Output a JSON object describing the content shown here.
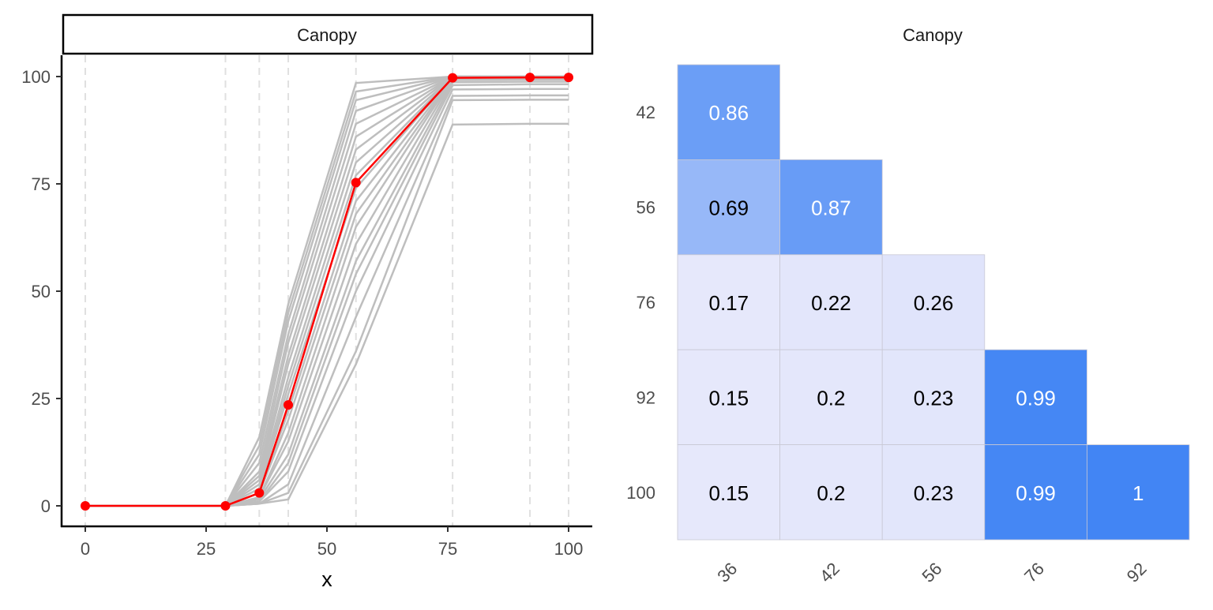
{
  "chart_data": [
    {
      "type": "line",
      "panel_title": "Canopy",
      "xlabel": "x",
      "ylabel": "",
      "xlim": [
        0,
        100
      ],
      "ylim": [
        0,
        100
      ],
      "x_ticks": [
        0,
        25,
        50,
        75,
        100
      ],
      "y_ticks": [
        0,
        25,
        50,
        75,
        100
      ],
      "vertical_reference_lines_x": [
        0,
        29,
        36,
        42,
        56,
        76,
        92,
        100
      ],
      "grid": false,
      "highlight_color": "#ff0000",
      "background_color": "#bebebe",
      "highlight_series": {
        "x": [
          0,
          29,
          36,
          42,
          56,
          76,
          92,
          100
        ],
        "y": [
          0,
          0,
          3,
          23.5,
          75.3,
          99.7,
          99.8,
          99.8
        ]
      },
      "background_series": [
        {
          "x": [
            0,
            29,
            36,
            42,
            56,
            76,
            92,
            100
          ],
          "y": [
            0,
            0,
            0.5,
            1.5,
            33,
            88.8,
            89,
            89
          ]
        },
        {
          "x": [
            0,
            29,
            36,
            42,
            56,
            76,
            92,
            100
          ],
          "y": [
            0,
            0,
            0.5,
            3,
            36,
            94.5,
            94.6,
            94.6
          ]
        },
        {
          "x": [
            0,
            29,
            36,
            42,
            56,
            76,
            92,
            100
          ],
          "y": [
            0,
            0,
            0.5,
            5,
            44,
            95.5,
            95.6,
            95.6
          ]
        },
        {
          "x": [
            0,
            29,
            36,
            42,
            56,
            76,
            92,
            100
          ],
          "y": [
            0,
            0,
            1,
            8,
            50,
            97,
            97.1,
            97.1
          ]
        },
        {
          "x": [
            0,
            29,
            36,
            42,
            56,
            76,
            92,
            100
          ],
          "y": [
            0,
            0,
            1,
            10,
            54,
            98,
            98.2,
            98.2
          ]
        },
        {
          "x": [
            0,
            29,
            36,
            42,
            56,
            76,
            92,
            100
          ],
          "y": [
            0,
            0,
            1.5,
            12,
            57,
            98.7,
            98.8,
            98.8
          ]
        },
        {
          "x": [
            0,
            29,
            36,
            42,
            56,
            76,
            92,
            100
          ],
          "y": [
            0,
            0,
            2,
            15,
            61,
            99.2,
            99.3,
            99.3
          ]
        },
        {
          "x": [
            0,
            29,
            36,
            42,
            56,
            76,
            92,
            100
          ],
          "y": [
            0,
            0,
            2,
            17,
            65,
            99.5,
            99.6,
            99.6
          ]
        },
        {
          "x": [
            0,
            29,
            36,
            42,
            56,
            76,
            92,
            100
          ],
          "y": [
            0,
            0,
            3,
            20,
            68,
            99.6,
            99.7,
            99.7
          ]
        },
        {
          "x": [
            0,
            29,
            36,
            42,
            56,
            76,
            92,
            100
          ],
          "y": [
            0,
            0,
            3,
            22,
            71,
            99.7,
            99.8,
            99.8
          ]
        },
        {
          "x": [
            0,
            29,
            36,
            42,
            56,
            76,
            92,
            100
          ],
          "y": [
            0,
            0,
            4,
            26,
            74,
            99.8,
            99.9,
            99.9
          ]
        },
        {
          "x": [
            0,
            29,
            36,
            42,
            56,
            76,
            92,
            100
          ],
          "y": [
            0,
            0,
            4,
            28,
            77,
            99.9,
            99.9,
            99.9
          ]
        },
        {
          "x": [
            0,
            29,
            36,
            42,
            56,
            76,
            92,
            100
          ],
          "y": [
            0,
            0,
            5,
            30,
            80,
            99.9,
            100,
            100
          ]
        },
        {
          "x": [
            0,
            29,
            36,
            42,
            56,
            76,
            92,
            100
          ],
          "y": [
            0,
            0,
            6,
            33,
            83,
            100,
            100,
            100
          ]
        },
        {
          "x": [
            0,
            29,
            36,
            42,
            56,
            76,
            92,
            100
          ],
          "y": [
            0,
            0,
            7,
            35,
            86,
            100,
            100,
            100
          ]
        },
        {
          "x": [
            0,
            29,
            36,
            42,
            56,
            76,
            92,
            100
          ],
          "y": [
            0,
            0,
            8,
            38,
            89,
            100,
            100,
            100
          ]
        },
        {
          "x": [
            0,
            29,
            36,
            42,
            56,
            76,
            92,
            100
          ],
          "y": [
            0,
            0,
            10,
            40,
            92,
            100,
            100,
            100
          ]
        },
        {
          "x": [
            0,
            29,
            36,
            42,
            56,
            76,
            92,
            100
          ],
          "y": [
            0,
            0,
            12,
            43,
            94.5,
            100,
            100,
            100
          ]
        },
        {
          "x": [
            0,
            29,
            36,
            42,
            56,
            76,
            92,
            100
          ],
          "y": [
            0,
            0,
            14,
            45,
            96.5,
            100,
            100,
            100
          ]
        },
        {
          "x": [
            0,
            29,
            36,
            42,
            56,
            76,
            92,
            100
          ],
          "y": [
            0,
            0,
            16,
            47,
            98.5,
            100,
            100,
            100
          ]
        }
      ]
    },
    {
      "type": "heatmap",
      "title": "Canopy",
      "x_categories": [
        "36",
        "42",
        "56",
        "76",
        "92"
      ],
      "y_categories": [
        "42",
        "56",
        "76",
        "92",
        "100"
      ],
      "color_low": "#e6e8fb",
      "color_high": "#4285f4",
      "light_text_color": "#ffffff",
      "dark_text_color": "#000000",
      "cells": [
        {
          "x": "36",
          "y": "42",
          "value": 0.86,
          "label": "0.86"
        },
        {
          "x": "36",
          "y": "56",
          "value": 0.69,
          "label": "0.69"
        },
        {
          "x": "42",
          "y": "56",
          "value": 0.87,
          "label": "0.87"
        },
        {
          "x": "36",
          "y": "76",
          "value": 0.17,
          "label": "0.17"
        },
        {
          "x": "42",
          "y": "76",
          "value": 0.22,
          "label": "0.22"
        },
        {
          "x": "56",
          "y": "76",
          "value": 0.26,
          "label": "0.26"
        },
        {
          "x": "36",
          "y": "92",
          "value": 0.15,
          "label": "0.15"
        },
        {
          "x": "42",
          "y": "92",
          "value": 0.2,
          "label": "0.2"
        },
        {
          "x": "56",
          "y": "92",
          "value": 0.23,
          "label": "0.23"
        },
        {
          "x": "76",
          "y": "92",
          "value": 0.99,
          "label": "0.99"
        },
        {
          "x": "36",
          "y": "100",
          "value": 0.15,
          "label": "0.15"
        },
        {
          "x": "42",
          "y": "100",
          "value": 0.2,
          "label": "0.2"
        },
        {
          "x": "56",
          "y": "100",
          "value": 0.23,
          "label": "0.23"
        },
        {
          "x": "76",
          "y": "100",
          "value": 0.99,
          "label": "0.99"
        },
        {
          "x": "92",
          "y": "100",
          "value": 1,
          "label": "1"
        }
      ]
    }
  ]
}
